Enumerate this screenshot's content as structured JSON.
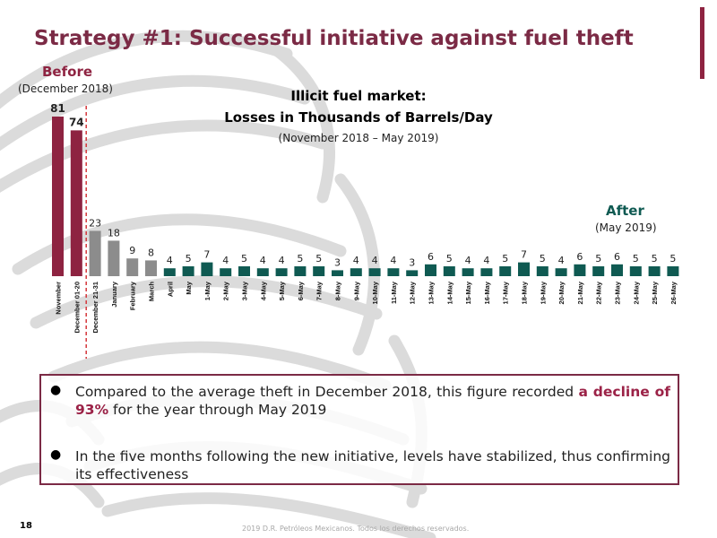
{
  "colors": {
    "title": "#7b2a45",
    "before_bar": "#8e2341",
    "transition_bar": "#8c8c8c",
    "after_bar": "#0f5a52",
    "after_label": "#0f5a52",
    "divider": "#d4363b",
    "accent": "#8e2341"
  },
  "header": {
    "title": "Strategy #1: Successful initiative against fuel theft"
  },
  "labels": {
    "before": "Before",
    "before_sub": "(December 2018)",
    "after": "After",
    "after_sub": "(May 2019)"
  },
  "chart_data": {
    "type": "bar",
    "title_line1": "Illicit fuel market:",
    "title_line2": "Losses in Thousands of Barrels/Day",
    "subtitle": "(November 2018 – May 2019)",
    "categories": [
      "November",
      "December 01-20",
      "December 21-31",
      "January",
      "February",
      "March",
      "April",
      "May",
      "1-May",
      "2-May",
      "3-May",
      "4-May",
      "5-May",
      "6-May",
      "7-May",
      "8-May",
      "9-May",
      "10-May",
      "11-May",
      "12-May",
      "13-May",
      "14-May",
      "15-May",
      "16-May",
      "17-May",
      "18-May",
      "19-May",
      "20-May",
      "21-May",
      "22-May",
      "23-May",
      "24-May",
      "25-May",
      "26-May"
    ],
    "values": [
      81,
      74,
      23,
      18,
      9,
      8,
      4,
      5,
      7,
      4,
      5,
      4,
      4,
      5,
      5,
      3,
      4,
      4,
      4,
      3,
      6,
      5,
      4,
      4,
      5,
      7,
      5,
      4,
      6,
      5,
      6,
      5,
      5,
      5
    ],
    "groups": [
      "before",
      "before",
      "transition",
      "transition",
      "transition",
      "transition",
      "after",
      "after",
      "after",
      "after",
      "after",
      "after",
      "after",
      "after",
      "after",
      "after",
      "after",
      "after",
      "after",
      "after",
      "after",
      "after",
      "after",
      "after",
      "after",
      "after",
      "after",
      "after",
      "after",
      "after",
      "after",
      "after",
      "after",
      "after"
    ],
    "ylim": [
      0,
      85
    ],
    "grid": false,
    "legend": "none"
  },
  "bullets": [
    {
      "pre": "Compared to the average theft in December 2018, this figure recorded ",
      "highlight": "a decline of 93%",
      "post": " for the year through May 2019"
    },
    {
      "text": "In the five months following the new initiative, levels have stabilized, thus confirming its effectiveness"
    }
  ],
  "footer": {
    "page_number": "18",
    "copyright": "2019 D.R. Petróleos Mexicanos. Todos los derechos reservados."
  }
}
